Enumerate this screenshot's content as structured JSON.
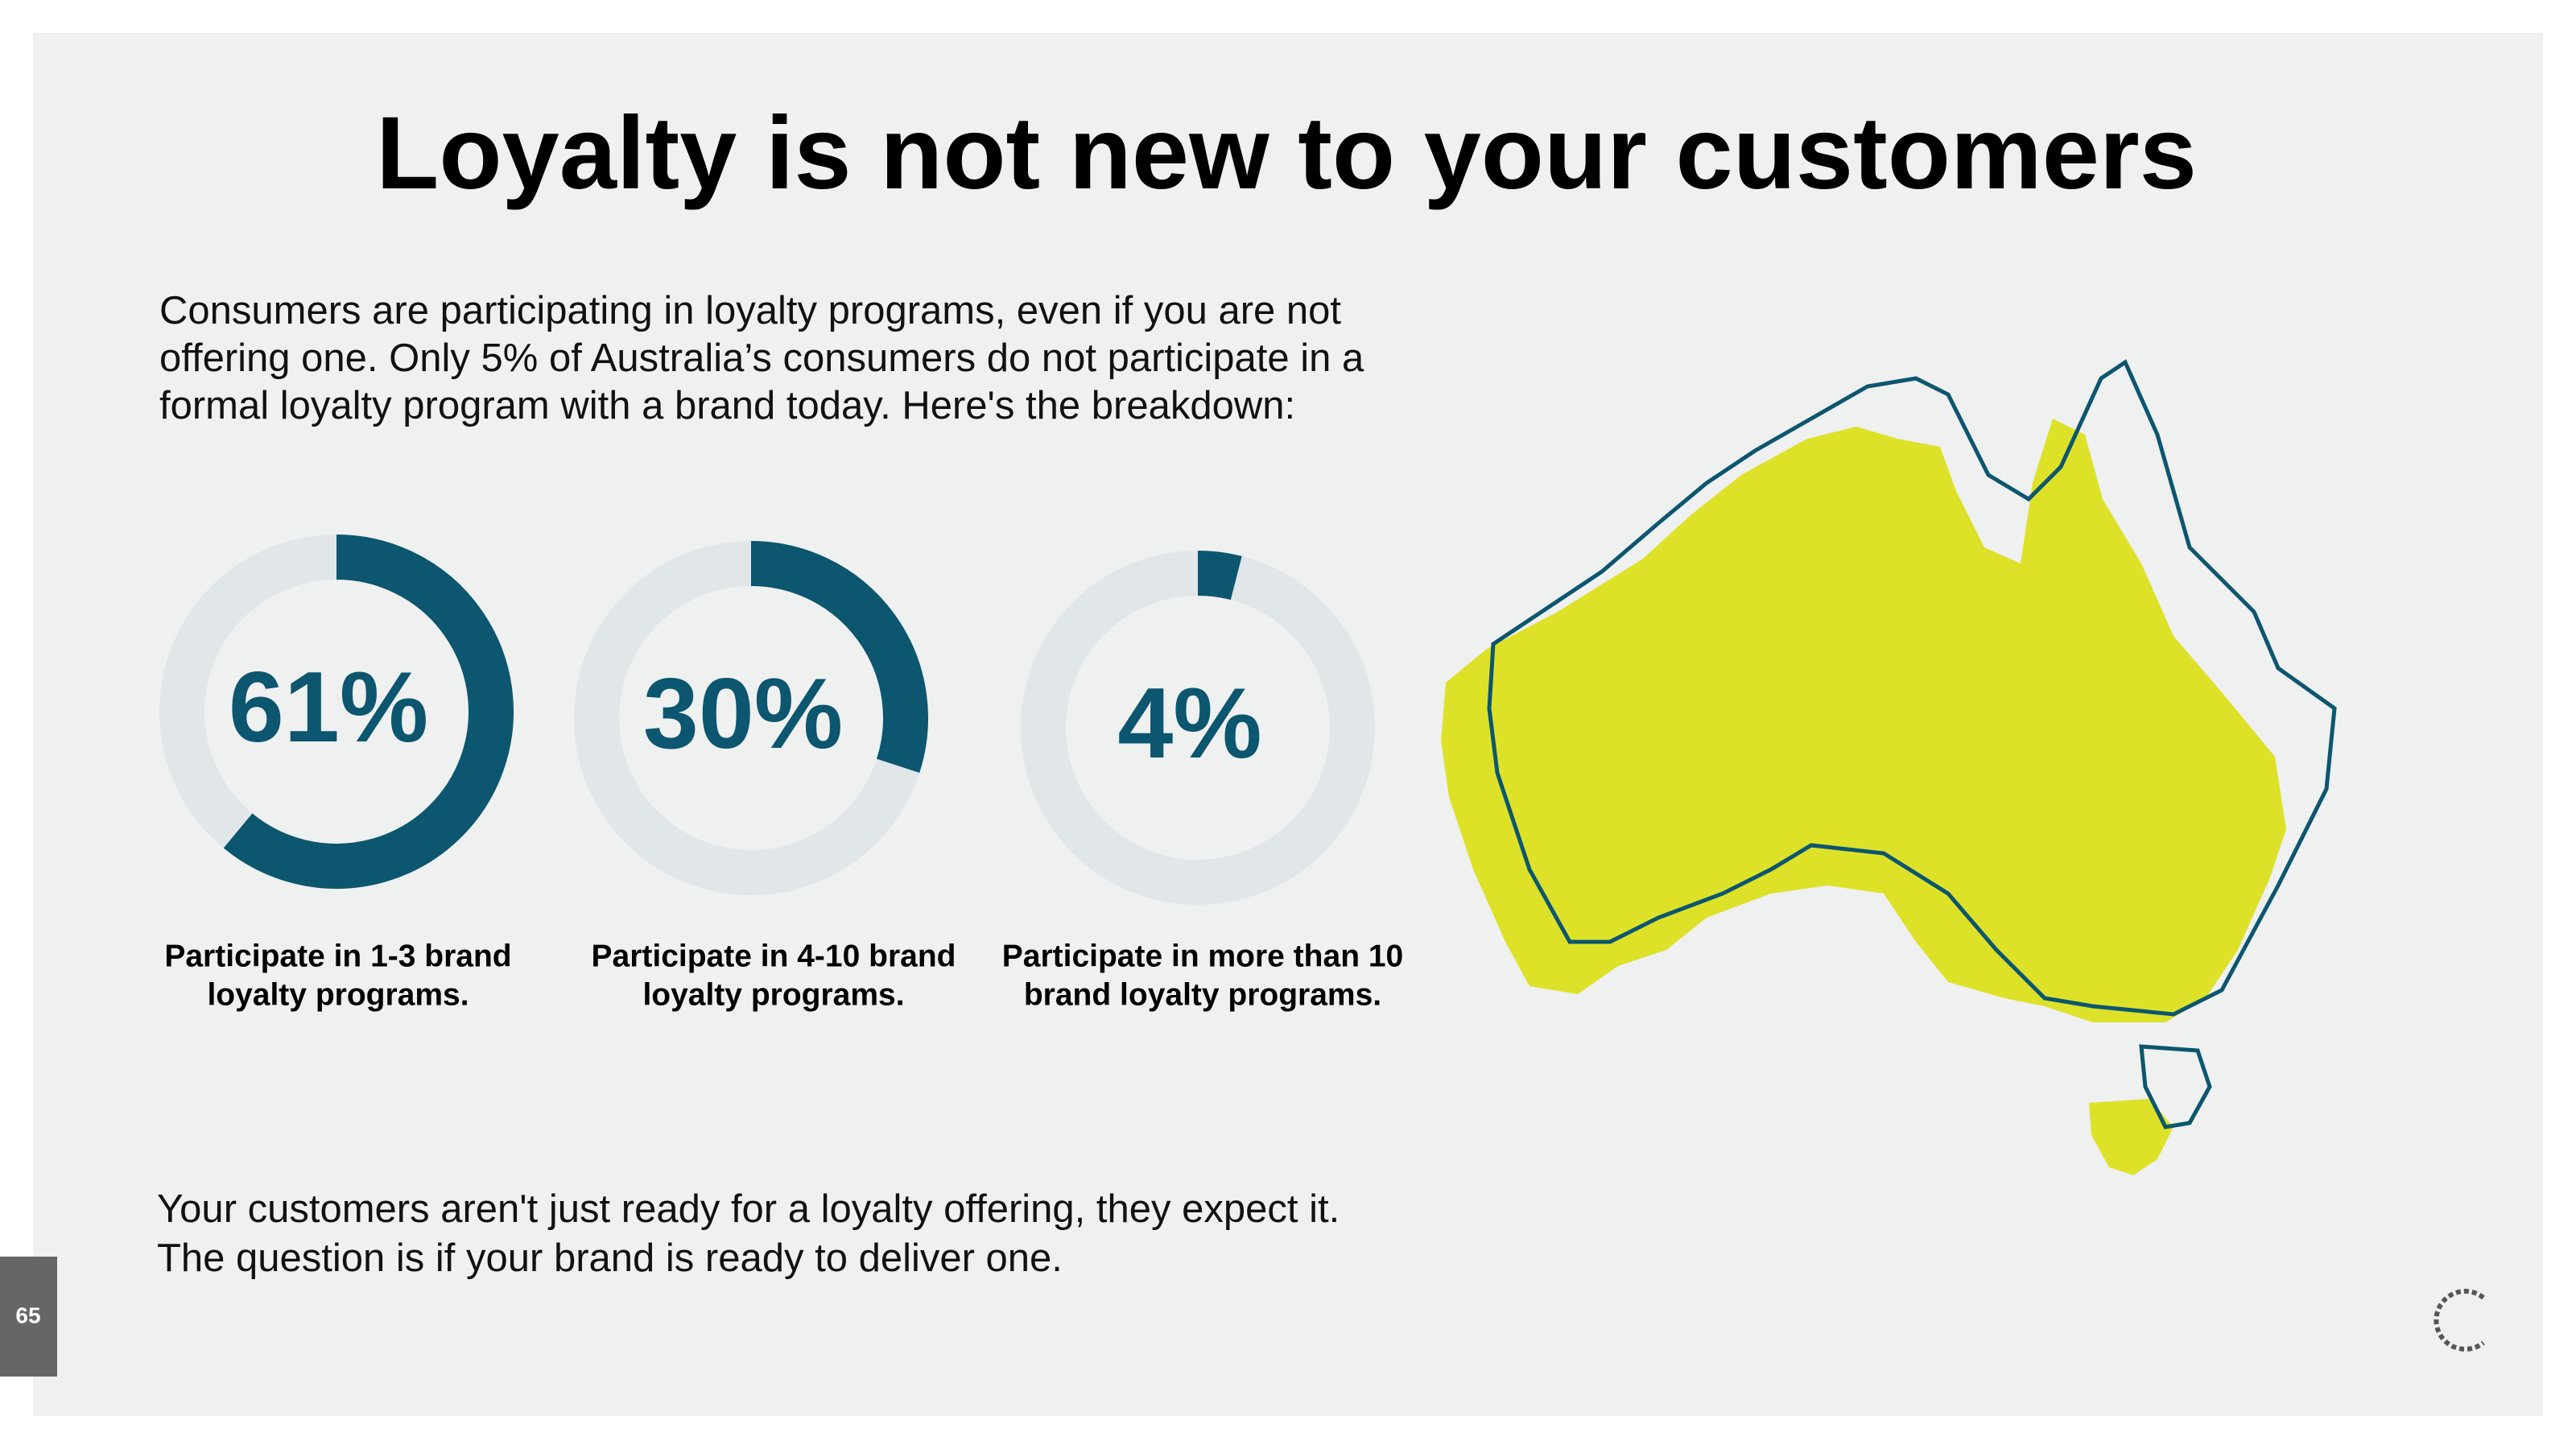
{
  "title": "Loyalty is not new to your customers",
  "intro": [
    "Consumers are participating in loyalty programs, even if you are not",
    "offering one. Only 5% of Australia’s consumers do not participate in a",
    "formal loyalty program with a brand today. Here's the breakdown:"
  ],
  "donuts": {
    "values": [
      61,
      30,
      4
    ],
    "value_labels": [
      "61%",
      "30%",
      "4%"
    ],
    "captions": [
      [
        "Participate in 1-3 brand",
        "loyalty programs."
      ],
      [
        "Participate in 4-10 brand",
        "loyalty programs."
      ],
      [
        "Participate in more than 10",
        "brand loyalty programs."
      ]
    ],
    "color": "#0c566f",
    "track_color": "#e1e6e9"
  },
  "footer": [
    "Your customers aren't just ready for a loyalty offering, they expect it.",
    "The question is if your brand is ready to deliver one."
  ],
  "page_number": "65"
}
